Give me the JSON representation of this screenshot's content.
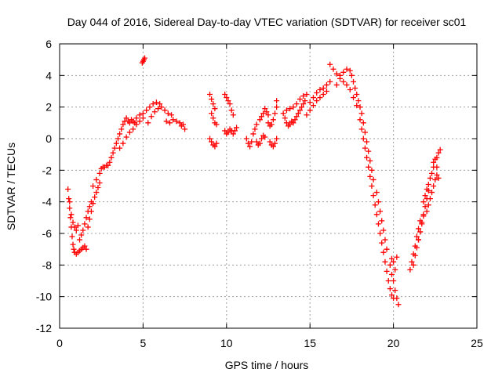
{
  "chart_data": {
    "type": "scatter",
    "title": "Day 044 of 2016, Sidereal Day-to-day VTEC variation (SDTVAR) for receiver sc01",
    "xlabel": "GPS time / hours",
    "ylabel": "SDTVAR / TECUs",
    "xlim": [
      0,
      25
    ],
    "ylim": [
      -12,
      6
    ],
    "xticks": [
      0,
      5,
      10,
      15,
      20,
      25
    ],
    "yticks": [
      -12,
      -10,
      -8,
      -6,
      -4,
      -2,
      0,
      2,
      4,
      6
    ],
    "xtick_labels": [
      "0",
      "5",
      "10",
      "15",
      "20",
      "25"
    ],
    "ytick_labels": [
      "-12",
      "-10",
      "-8",
      "-6",
      "-4",
      "-2",
      "0",
      "2",
      "4",
      "6"
    ],
    "grid": true,
    "marker": "+",
    "series": [
      {
        "name": "SDTVAR",
        "color": "#ff0000",
        "points": [
          [
            0.5,
            -3.2
          ],
          [
            0.55,
            -3.8
          ],
          [
            0.6,
            -4.4
          ],
          [
            0.65,
            -5.0
          ],
          [
            0.7,
            -5.6
          ],
          [
            0.75,
            -6.2
          ],
          [
            0.8,
            -6.7
          ],
          [
            0.85,
            -7.0
          ],
          [
            0.6,
            -4.0
          ],
          [
            0.7,
            -4.8
          ],
          [
            0.8,
            -5.3
          ],
          [
            0.9,
            -5.6
          ],
          [
            1.0,
            -5.8
          ],
          [
            1.1,
            -5.5
          ],
          [
            0.9,
            -7.2
          ],
          [
            1.0,
            -7.3
          ],
          [
            1.1,
            -7.2
          ],
          [
            1.2,
            -7.1
          ],
          [
            1.3,
            -7.0
          ],
          [
            1.4,
            -6.9
          ],
          [
            1.5,
            -6.8
          ],
          [
            1.6,
            -7.0
          ],
          [
            1.2,
            -6.4
          ],
          [
            1.3,
            -6.1
          ],
          [
            1.4,
            -5.8
          ],
          [
            1.5,
            -5.4
          ],
          [
            1.6,
            -5.0
          ],
          [
            1.7,
            -4.6
          ],
          [
            1.8,
            -4.3
          ],
          [
            1.9,
            -4.0
          ],
          [
            1.7,
            -5.6
          ],
          [
            1.8,
            -5.1
          ],
          [
            1.9,
            -4.6
          ],
          [
            2.0,
            -4.1
          ],
          [
            2.1,
            -3.7
          ],
          [
            2.2,
            -3.4
          ],
          [
            2.3,
            -3.1
          ],
          [
            2.4,
            -2.8
          ],
          [
            2.0,
            -3.0
          ],
          [
            2.2,
            -2.6
          ],
          [
            2.4,
            -2.2
          ],
          [
            2.5,
            -1.9
          ],
          [
            2.6,
            -1.8
          ],
          [
            2.7,
            -1.8
          ],
          [
            2.8,
            -1.7
          ],
          [
            2.9,
            -1.7
          ],
          [
            3.0,
            -1.5
          ],
          [
            3.1,
            -1.2
          ],
          [
            3.2,
            -0.9
          ],
          [
            3.3,
            -0.6
          ],
          [
            3.4,
            -0.3
          ],
          [
            3.5,
            0.0
          ],
          [
            3.6,
            0.3
          ],
          [
            3.7,
            0.6
          ],
          [
            3.8,
            0.9
          ],
          [
            3.9,
            1.1
          ],
          [
            4.0,
            1.3
          ],
          [
            4.1,
            1.1
          ],
          [
            4.2,
            1.0
          ],
          [
            4.3,
            1.2
          ],
          [
            4.4,
            1.1
          ],
          [
            4.5,
            1.0
          ],
          [
            3.6,
            -0.6
          ],
          [
            3.8,
            -0.3
          ],
          [
            4.0,
            0.1
          ],
          [
            4.2,
            0.4
          ],
          [
            4.4,
            0.6
          ],
          [
            4.6,
            0.9
          ],
          [
            4.8,
            1.1
          ],
          [
            5.0,
            1.3
          ],
          [
            4.6,
            1.3
          ],
          [
            4.8,
            1.5
          ],
          [
            5.0,
            1.6
          ],
          [
            5.2,
            1.8
          ],
          [
            5.4,
            2.0
          ],
          [
            5.6,
            2.2
          ],
          [
            5.8,
            2.3
          ],
          [
            6.0,
            2.2
          ],
          [
            5.3,
            1.0
          ],
          [
            5.5,
            1.4
          ],
          [
            5.7,
            1.7
          ],
          [
            5.9,
            1.9
          ],
          [
            6.1,
            2.0
          ],
          [
            6.3,
            1.8
          ],
          [
            6.5,
            1.6
          ],
          [
            6.7,
            1.5
          ],
          [
            6.4,
            1.1
          ],
          [
            6.6,
            1.0
          ],
          [
            6.8,
            1.2
          ],
          [
            7.0,
            1.1
          ],
          [
            7.2,
            1.0
          ],
          [
            7.4,
            0.9
          ],
          [
            7.5,
            0.6
          ],
          [
            7.3,
            0.8
          ],
          [
            5.0,
            4.9
          ],
          [
            5.05,
            5.0
          ],
          [
            5.1,
            5.1
          ],
          [
            4.95,
            4.8
          ],
          [
            9.0,
            2.8
          ],
          [
            9.1,
            2.5
          ],
          [
            9.2,
            2.2
          ],
          [
            9.3,
            1.9
          ],
          [
            9.1,
            1.6
          ],
          [
            9.2,
            1.3
          ],
          [
            9.3,
            1.0
          ],
          [
            9.4,
            0.9
          ],
          [
            9.0,
            0.0
          ],
          [
            9.1,
            -0.2
          ],
          [
            9.2,
            -0.4
          ],
          [
            9.3,
            -0.5
          ],
          [
            9.4,
            -0.3
          ],
          [
            9.9,
            2.8
          ],
          [
            10.0,
            2.6
          ],
          [
            10.1,
            2.4
          ],
          [
            10.2,
            2.2
          ],
          [
            10.3,
            1.8
          ],
          [
            10.4,
            1.5
          ],
          [
            9.9,
            0.5
          ],
          [
            10.0,
            0.3
          ],
          [
            10.1,
            0.4
          ],
          [
            10.2,
            0.6
          ],
          [
            10.3,
            0.5
          ],
          [
            10.4,
            0.3
          ],
          [
            10.5,
            0.5
          ],
          [
            10.6,
            0.7
          ],
          [
            11.2,
            0.0
          ],
          [
            11.3,
            -0.3
          ],
          [
            11.4,
            -0.5
          ],
          [
            11.5,
            -0.2
          ],
          [
            11.6,
            0.3
          ],
          [
            11.7,
            0.6
          ],
          [
            11.8,
            0.9
          ],
          [
            11.8,
            -0.2
          ],
          [
            11.9,
            -0.4
          ],
          [
            12.0,
            -0.3
          ],
          [
            12.1,
            0.0
          ],
          [
            12.2,
            0.2
          ],
          [
            12.3,
            0.1
          ],
          [
            12.0,
            1.2
          ],
          [
            12.1,
            1.4
          ],
          [
            12.2,
            1.6
          ],
          [
            12.3,
            1.9
          ],
          [
            12.4,
            1.7
          ],
          [
            12.5,
            1.5
          ],
          [
            12.5,
            1.0
          ],
          [
            12.6,
            0.8
          ],
          [
            12.7,
            0.9
          ],
          [
            12.8,
            1.2
          ],
          [
            12.9,
            1.6
          ],
          [
            13.0,
            2.0
          ],
          [
            13.0,
            2.4
          ],
          [
            12.6,
            -0.2
          ],
          [
            12.7,
            -0.4
          ],
          [
            12.8,
            -0.5
          ],
          [
            12.9,
            -0.3
          ],
          [
            13.0,
            0.0
          ],
          [
            13.4,
            1.6
          ],
          [
            13.5,
            1.3
          ],
          [
            13.6,
            1.0
          ],
          [
            13.7,
            0.8
          ],
          [
            13.8,
            0.9
          ],
          [
            13.9,
            1.1
          ],
          [
            14.0,
            1.0
          ],
          [
            14.1,
            1.2
          ],
          [
            14.2,
            1.4
          ],
          [
            14.3,
            1.6
          ],
          [
            14.4,
            1.8
          ],
          [
            14.5,
            2.0
          ],
          [
            14.6,
            2.2
          ],
          [
            14.7,
            2.4
          ],
          [
            13.6,
            1.8
          ],
          [
            13.8,
            1.9
          ],
          [
            14.0,
            2.0
          ],
          [
            14.2,
            2.2
          ],
          [
            14.4,
            2.5
          ],
          [
            14.6,
            2.7
          ],
          [
            14.8,
            2.8
          ],
          [
            14.8,
            1.5
          ],
          [
            15.0,
            1.8
          ],
          [
            15.2,
            2.1
          ],
          [
            15.4,
            2.4
          ],
          [
            15.6,
            2.6
          ],
          [
            15.8,
            2.8
          ],
          [
            16.0,
            3.0
          ],
          [
            15.0,
            2.3
          ],
          [
            15.2,
            2.6
          ],
          [
            15.4,
            2.9
          ],
          [
            15.6,
            3.1
          ],
          [
            15.8,
            3.2
          ],
          [
            16.0,
            3.4
          ],
          [
            16.2,
            3.6
          ],
          [
            16.2,
            4.7
          ],
          [
            16.4,
            4.4
          ],
          [
            16.6,
            4.1
          ],
          [
            16.8,
            4.0
          ],
          [
            17.0,
            4.2
          ],
          [
            17.2,
            4.4
          ],
          [
            17.4,
            4.3
          ],
          [
            16.6,
            3.4
          ],
          [
            16.8,
            3.8
          ],
          [
            17.0,
            3.6
          ],
          [
            17.2,
            3.4
          ],
          [
            17.4,
            3.1
          ],
          [
            17.6,
            2.6
          ],
          [
            17.8,
            2.1
          ],
          [
            17.5,
            4.0
          ],
          [
            17.6,
            3.6
          ],
          [
            17.7,
            3.2
          ],
          [
            17.8,
            2.8
          ],
          [
            17.9,
            2.4
          ],
          [
            18.0,
            2.0
          ],
          [
            18.1,
            1.6
          ],
          [
            18.0,
            1.2
          ],
          [
            18.1,
            0.6
          ],
          [
            18.2,
            0.0
          ],
          [
            18.3,
            -0.6
          ],
          [
            18.4,
            -1.2
          ],
          [
            18.5,
            -1.8
          ],
          [
            18.6,
            -2.4
          ],
          [
            18.2,
            1.0
          ],
          [
            18.3,
            0.4
          ],
          [
            18.4,
            -0.2
          ],
          [
            18.5,
            -0.8
          ],
          [
            18.6,
            -1.4
          ],
          [
            18.7,
            -2.0
          ],
          [
            18.8,
            -2.6
          ],
          [
            18.7,
            -3.0
          ],
          [
            18.8,
            -3.6
          ],
          [
            18.9,
            -4.2
          ],
          [
            19.0,
            -4.8
          ],
          [
            19.1,
            -5.4
          ],
          [
            19.2,
            -6.0
          ],
          [
            19.3,
            -6.6
          ],
          [
            19.0,
            -3.4
          ],
          [
            19.1,
            -4.0
          ],
          [
            19.2,
            -4.6
          ],
          [
            19.3,
            -5.2
          ],
          [
            19.4,
            -5.8
          ],
          [
            19.5,
            -6.4
          ],
          [
            19.6,
            -7.0
          ],
          [
            19.4,
            -7.2
          ],
          [
            19.5,
            -7.8
          ],
          [
            19.6,
            -8.4
          ],
          [
            19.7,
            -9.0
          ],
          [
            19.8,
            -9.5
          ],
          [
            19.9,
            -9.9
          ],
          [
            20.0,
            -10.1
          ],
          [
            19.8,
            -8.0
          ],
          [
            19.9,
            -8.6
          ],
          [
            20.0,
            -9.0
          ],
          [
            20.1,
            -9.6
          ],
          [
            20.2,
            -10.1
          ],
          [
            20.3,
            -10.5
          ],
          [
            20.1,
            -8.3
          ],
          [
            20.2,
            -7.5
          ],
          [
            20.0,
            -7.8
          ],
          [
            19.9,
            -7.6
          ],
          [
            21.0,
            -8.3
          ],
          [
            21.1,
            -7.8
          ],
          [
            21.2,
            -7.3
          ],
          [
            21.3,
            -6.8
          ],
          [
            21.4,
            -6.2
          ],
          [
            21.5,
            -5.7
          ],
          [
            21.6,
            -5.2
          ],
          [
            21.2,
            -8.0
          ],
          [
            21.3,
            -7.4
          ],
          [
            21.4,
            -6.9
          ],
          [
            21.5,
            -6.4
          ],
          [
            21.6,
            -5.9
          ],
          [
            21.7,
            -5.4
          ],
          [
            21.8,
            -4.8
          ],
          [
            21.5,
            -6.4
          ],
          [
            21.6,
            -5.9
          ],
          [
            21.7,
            -5.3
          ],
          [
            21.8,
            -4.9
          ],
          [
            21.9,
            -4.3
          ],
          [
            22.0,
            -3.8
          ],
          [
            22.1,
            -3.3
          ],
          [
            21.8,
            -4.0
          ],
          [
            21.9,
            -3.6
          ],
          [
            22.0,
            -3.2
          ],
          [
            22.1,
            -2.9
          ],
          [
            22.2,
            -2.5
          ],
          [
            22.3,
            -2.2
          ],
          [
            22.4,
            -1.8
          ],
          [
            22.0,
            -4.6
          ],
          [
            22.1,
            -4.2
          ],
          [
            22.2,
            -3.8
          ],
          [
            22.3,
            -3.4
          ],
          [
            22.4,
            -3.0
          ],
          [
            22.5,
            -2.6
          ],
          [
            22.6,
            -2.3
          ],
          [
            22.4,
            -1.5
          ],
          [
            22.5,
            -1.3
          ],
          [
            22.6,
            -1.2
          ],
          [
            22.7,
            -0.9
          ],
          [
            22.8,
            -0.7
          ],
          [
            22.6,
            -1.8
          ],
          [
            22.7,
            -2.5
          ]
        ]
      }
    ]
  }
}
